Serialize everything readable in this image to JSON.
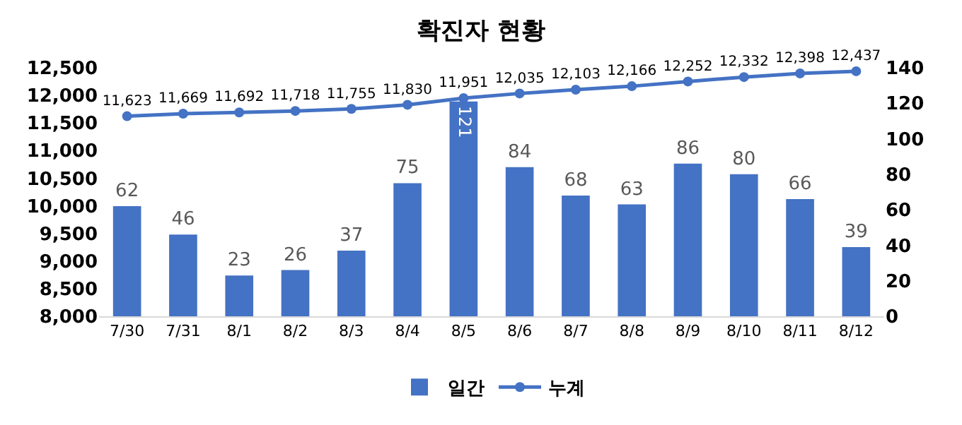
{
  "chart_data": {
    "type": "bar",
    "title": "확진자 현황",
    "categories": [
      "7/30",
      "7/31",
      "8/1",
      "8/2",
      "8/3",
      "8/4",
      "8/5",
      "8/6",
      "8/7",
      "8/8",
      "8/9",
      "8/10",
      "8/11",
      "8/12"
    ],
    "series": [
      {
        "name": "일간",
        "axis": "y2",
        "color": "#4472c4",
        "values": [
          62,
          46,
          23,
          26,
          37,
          75,
          121,
          84,
          68,
          63,
          86,
          80,
          66,
          39
        ],
        "value_labels": [
          "62",
          "46",
          "23",
          "26",
          "37",
          "75",
          "121",
          "84",
          "68",
          "63",
          "86",
          "80",
          "66",
          "39"
        ]
      },
      {
        "name": "누계",
        "type": "line",
        "color": "#4472c4",
        "marker": "circle",
        "values": [
          11623,
          11669,
          11692,
          11718,
          11755,
          11830,
          11951,
          12035,
          12103,
          12166,
          12252,
          12332,
          12398,
          12437
        ],
        "value_labels": [
          "11,623",
          "11,669",
          "11,692",
          "11,718",
          "11,755",
          "11,830",
          "11,951",
          "12,035",
          "12,103",
          "12,166",
          "12,252",
          "12,332",
          "12,398",
          "12,437"
        ]
      }
    ],
    "ylim": [
      8000,
      12500
    ],
    "yticks": [
      {
        "value": 8000,
        "label": "8,000"
      },
      {
        "value": 8500,
        "label": "8,500"
      },
      {
        "value": 9000,
        "label": "9,000"
      },
      {
        "value": 9500,
        "label": "9,500"
      },
      {
        "value": 10000,
        "label": "10,000"
      },
      {
        "value": 10500,
        "label": "10,500"
      },
      {
        "value": 11000,
        "label": "11,000"
      },
      {
        "value": 11500,
        "label": "11,500"
      },
      {
        "value": 12000,
        "label": "12,000"
      },
      {
        "value": 12500,
        "label": "12,500"
      }
    ],
    "y2lim": [
      0,
      140
    ],
    "y2ticks": [
      0,
      20,
      40,
      60,
      80,
      100,
      120,
      140
    ],
    "grid": false,
    "legend": "bottom"
  }
}
